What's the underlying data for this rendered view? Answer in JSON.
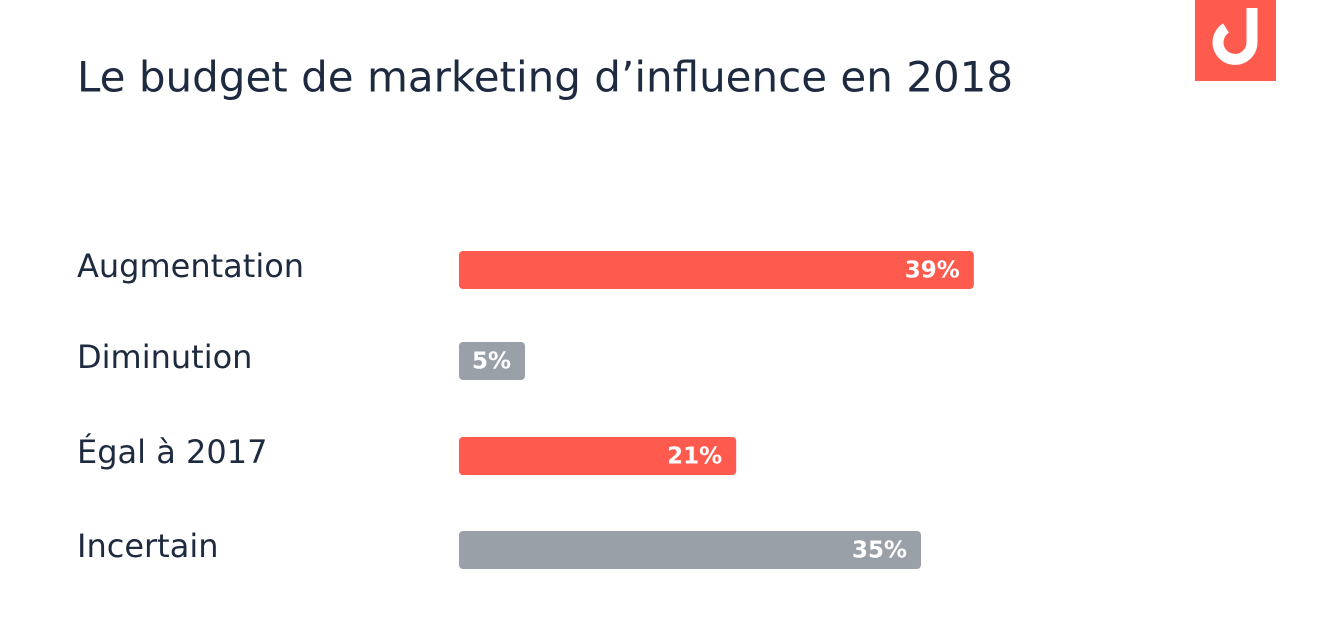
{
  "chart_data": {
    "type": "bar",
    "orientation": "horizontal",
    "title": "Le budget de marketing d’influence en 2018",
    "categories": [
      "Augmentation",
      "Diminution",
      "Égal à 2017",
      "Incertain"
    ],
    "values": [
      39,
      5,
      21,
      35
    ],
    "value_labels": [
      "39%",
      "5%",
      "21%",
      "35%"
    ],
    "colors": [
      "#ff5a4e",
      "#9aa0a8",
      "#ff5a4e",
      "#9aa0a8"
    ]
  }
}
